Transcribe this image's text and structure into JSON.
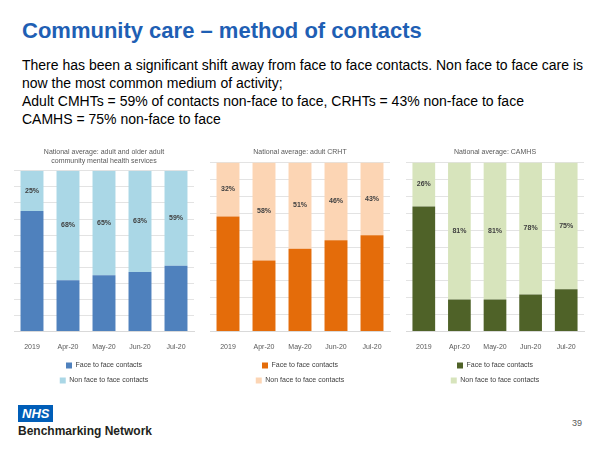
{
  "title": "Community care – method of contacts",
  "text": [
    "There has been a significant shift away from face to face contacts. Non face to face care is now the most common medium of activity;",
    "Adult CMHTs = 59% of contacts non-face to face, CRHTs = 43% non-face to face",
    "CAMHS = 75% non-face to face"
  ],
  "chart_data": [
    {
      "type": "bar",
      "title": "National average: adult and older adult community mental health services",
      "categories": [
        "2019",
        "Apr-20",
        "May-20",
        "Jun-20",
        "Jul-20"
      ],
      "series": [
        {
          "name": "Face to face contacts",
          "color": "#4f81bd",
          "values": [
            75,
            32,
            35,
            37,
            41
          ]
        },
        {
          "name": "Non face to face contacts",
          "color": "#aad7e6",
          "values": [
            25,
            68,
            65,
            63,
            59
          ],
          "value_labels": [
            "25%",
            "68%",
            "65%",
            "63%",
            "59%"
          ],
          "data_labels": true
        }
      ],
      "stacked": true,
      "ylim": [
        0,
        100
      ],
      "yticks": [
        0,
        10,
        20,
        30,
        40,
        50,
        60,
        70,
        80,
        90,
        100
      ],
      "grid": true,
      "legend": "bottom",
      "tick_labels": "x"
    },
    {
      "type": "bar",
      "title": "National average: adult CRHT",
      "categories": [
        "2019",
        "Apr-20",
        "May-20",
        "Jun-20",
        "Jul-20"
      ],
      "series": [
        {
          "name": "Face to face contacts",
          "color": "#e46c0a",
          "values": [
            68,
            42,
            49,
            54,
            57
          ]
        },
        {
          "name": "Non face to face contacts",
          "color": "#fcd5b4",
          "values": [
            32,
            58,
            51,
            46,
            43
          ],
          "value_labels": [
            "32%",
            "58%",
            "51%",
            "46%",
            "43%"
          ],
          "data_labels": true
        }
      ],
      "stacked": true,
      "ylim": [
        0,
        100
      ],
      "yticks": [
        0,
        10,
        20,
        30,
        40,
        50,
        60,
        70,
        80,
        90,
        100
      ],
      "grid": true,
      "legend": "bottom",
      "tick_labels": "x"
    },
    {
      "type": "bar",
      "title": "National average: CAMHS",
      "categories": [
        "2019",
        "Apr-20",
        "May-20",
        "Jun-20",
        "Jul-20"
      ],
      "series": [
        {
          "name": "Face to face contacts",
          "color": "#4f6228",
          "values": [
            74,
            19,
            19,
            22,
            25
          ]
        },
        {
          "name": "Non face to face contacts",
          "color": "#d7e4bc",
          "values": [
            26,
            81,
            81,
            78,
            75
          ],
          "value_labels": [
            "26%",
            "81%",
            "81%",
            "78%",
            "75%"
          ],
          "data_labels": true
        }
      ],
      "stacked": true,
      "ylim": [
        0,
        100
      ],
      "yticks": [
        0,
        10,
        20,
        30,
        40,
        50,
        60,
        70,
        80,
        90,
        100
      ],
      "grid": true,
      "legend": "bottom",
      "tick_labels": "x"
    }
  ],
  "footer": {
    "logo": "NHS",
    "organisation": "Benchmarking Network",
    "page": "39"
  }
}
